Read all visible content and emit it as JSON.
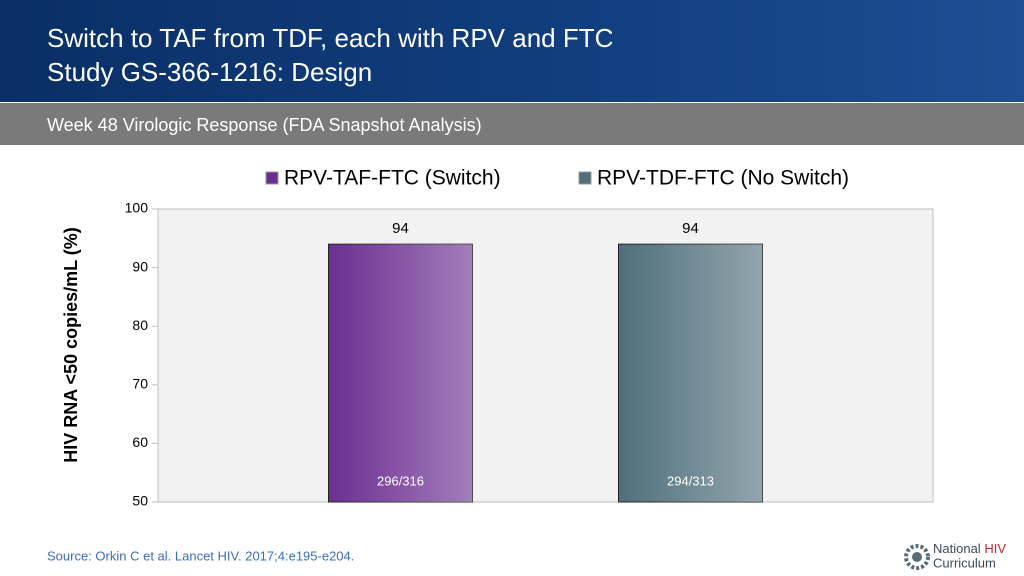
{
  "header": {
    "title": [
      "Switch to TAF from TDF, each with RPV and FTC",
      "Study GS-366-1216: Design"
    ],
    "subtitle": "Week 48 Virologic Response (FDA Snapshot Analysis)"
  },
  "chart_data": {
    "type": "bar",
    "categories": [
      null
    ],
    "series": [
      {
        "name": "RPV-TAF-FTC (Switch)",
        "color": "#6b2e92",
        "values": [
          94
        ],
        "annotations": [
          "296/316"
        ]
      },
      {
        "name": "RPV-TDF-FTC (No Switch)",
        "color": "#4f6f7b",
        "values": [
          94
        ],
        "annotations": [
          "294/313"
        ]
      }
    ],
    "y_label": "HIV RNA <50 copies/mL (%)",
    "ylim": [
      50,
      100
    ],
    "yticks": [
      50,
      60,
      70,
      80,
      90,
      100
    ],
    "grid": false,
    "legend": "top"
  },
  "footer": {
    "source": "Source: Orkin C et al. Lancet HIV. 2017;4:e195-e204.",
    "logo": [
      "National",
      "HIV",
      "Curriculum"
    ]
  }
}
